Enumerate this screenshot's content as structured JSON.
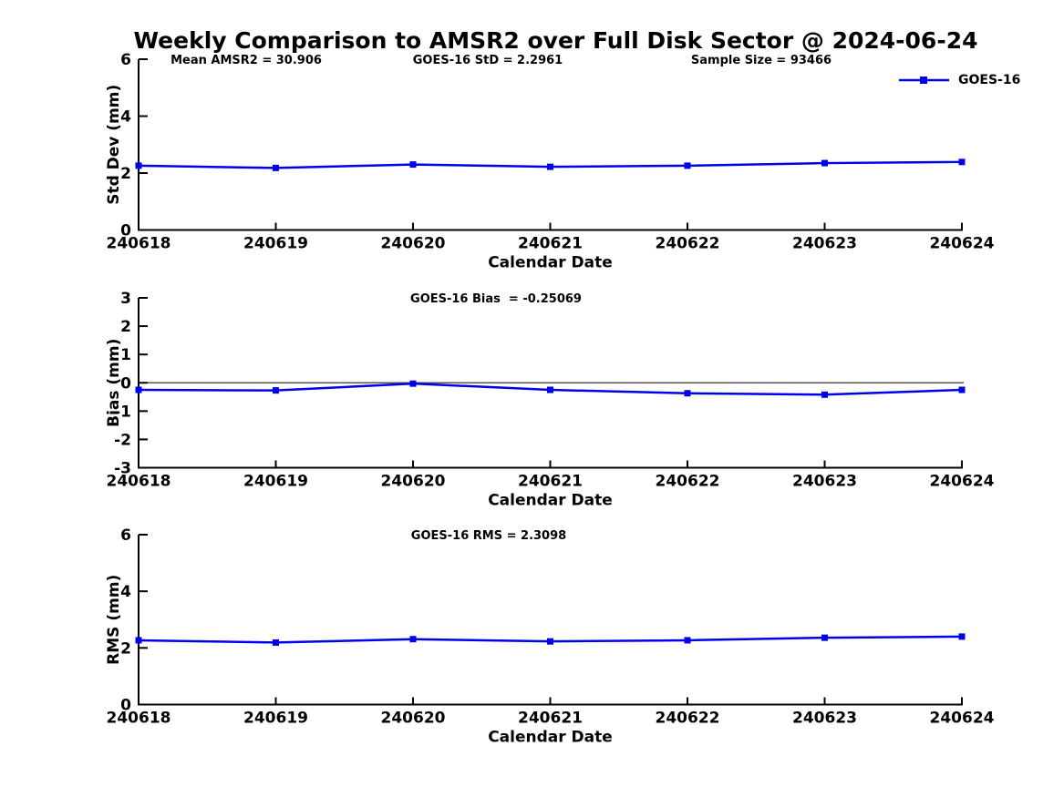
{
  "title": "Weekly Comparison to AMSR2 over Full Disk Sector @ 2024-06-24",
  "legend": {
    "label": "GOES-16",
    "marker": "filled-square"
  },
  "colors": {
    "line": "#0000ee",
    "zero_line": "#555555",
    "axis": "#000000",
    "text": "#000000"
  },
  "chart_data": [
    {
      "type": "line",
      "id": "std_dev",
      "stats": [
        "Mean AMSR2 = 30.906",
        "GOES-16 StD = 2.2961",
        "Sample Size = 93466"
      ],
      "ylabel": "Std Dev (mm)",
      "xlabel": "Calendar Date",
      "ylim": [
        0,
        6
      ],
      "yticks": [
        0,
        2,
        4,
        6
      ],
      "grid": false,
      "legend_position": "top-right-outside",
      "categories": [
        "240618",
        "240619",
        "240620",
        "240621",
        "240622",
        "240623",
        "240624"
      ],
      "series": [
        {
          "name": "GOES-16",
          "values": [
            2.26,
            2.18,
            2.3,
            2.22,
            2.26,
            2.35,
            2.39
          ]
        }
      ]
    },
    {
      "type": "line",
      "id": "bias",
      "stats": [
        "GOES-16 Bias  = -0.25069"
      ],
      "ylabel": "Bias (mm)",
      "xlabel": "Calendar Date",
      "ylim": [
        -3,
        3
      ],
      "yticks": [
        3,
        2,
        1,
        0,
        -1,
        -2,
        -3
      ],
      "zero_line": true,
      "grid": false,
      "categories": [
        "240618",
        "240619",
        "240620",
        "240621",
        "240622",
        "240623",
        "240624"
      ],
      "series": [
        {
          "name": "GOES-16",
          "values": [
            -0.25,
            -0.27,
            -0.03,
            -0.25,
            -0.37,
            -0.42,
            -0.25
          ]
        }
      ]
    },
    {
      "type": "line",
      "id": "rms",
      "stats": [
        "GOES-16 RMS = 2.3098"
      ],
      "ylabel": "RMS (mm)",
      "xlabel": "Calendar Date",
      "ylim": [
        0,
        6
      ],
      "yticks": [
        0,
        2,
        4,
        6
      ],
      "grid": false,
      "categories": [
        "240618",
        "240619",
        "240620",
        "240621",
        "240622",
        "240623",
        "240624"
      ],
      "series": [
        {
          "name": "GOES-16",
          "values": [
            2.27,
            2.19,
            2.31,
            2.23,
            2.27,
            2.36,
            2.4
          ]
        }
      ]
    }
  ]
}
